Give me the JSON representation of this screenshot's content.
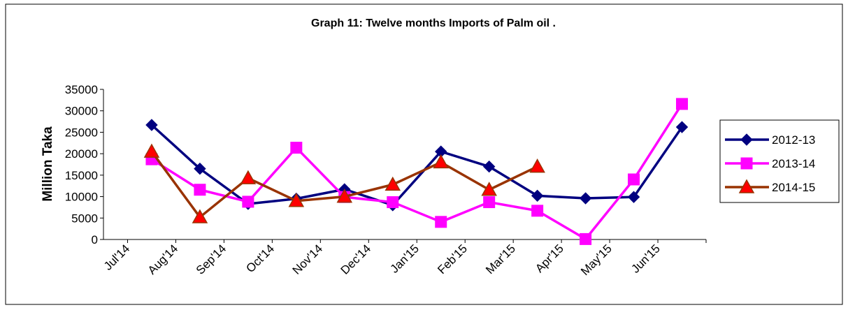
{
  "chart_data": {
    "type": "line",
    "title": "Graph 11: Twelve months Imports of Palm oil .",
    "y_label": "Million Taka",
    "categories": [
      "Jul'14",
      "Aug'14",
      "Sep'14",
      "Oct'14",
      "Nov'14",
      "Dec'14",
      "Jan'15",
      "Feb'15",
      "Mar'15",
      "Apr'15",
      "May'15",
      "Jun'15"
    ],
    "series": [
      {
        "name": "2012-13",
        "color": "#000080",
        "marker": "diamond",
        "marker_color": "#000080",
        "values": [
          26700,
          16500,
          8300,
          9500,
          11700,
          8000,
          20500,
          17000,
          10200,
          9600,
          9900,
          26200
        ]
      },
      {
        "name": "2013-14",
        "color": "#ff00ff",
        "marker": "square",
        "marker_color": "#ff00ff",
        "values": [
          18700,
          11600,
          8800,
          21400,
          9900,
          8700,
          4100,
          8700,
          6700,
          100,
          14000,
          31600
        ]
      },
      {
        "name": "2014-15",
        "color": "#993300",
        "marker": "triangle",
        "marker_color": "#ff0000",
        "values": [
          20500,
          5200,
          14300,
          9000,
          10000,
          12800,
          18000,
          11600,
          17000,
          null,
          null,
          null
        ]
      }
    ],
    "ylim": [
      0,
      35000
    ],
    "yticks": [
      0,
      5000,
      10000,
      15000,
      20000,
      25000,
      30000,
      35000
    ],
    "grid": false,
    "legend": "right"
  }
}
